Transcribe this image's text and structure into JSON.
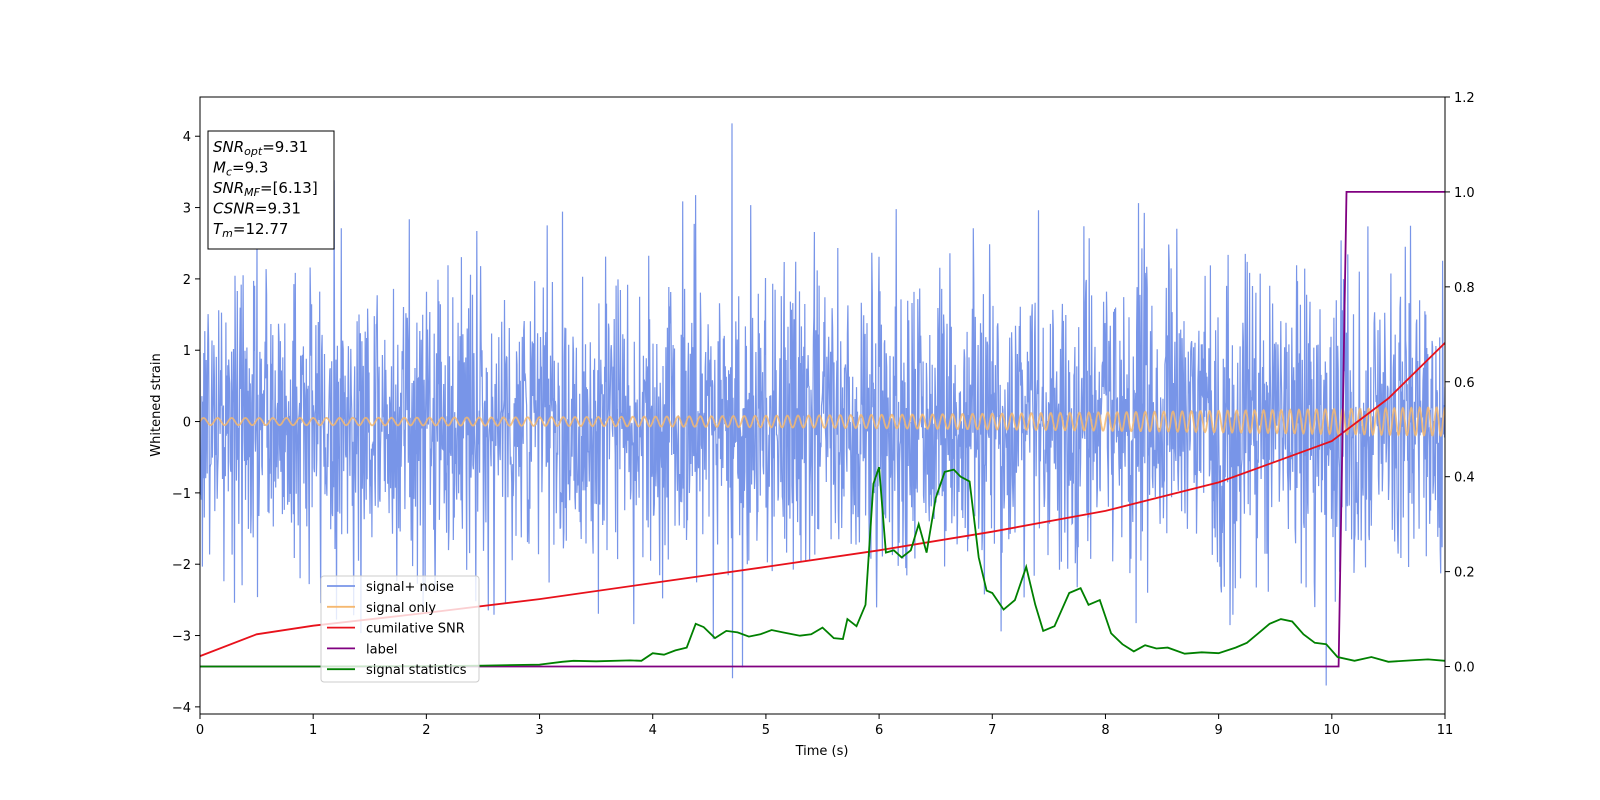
{
  "chart_data": {
    "type": "line",
    "title": "",
    "xlabel": "Time (s)",
    "ylabel": "Whitened strain",
    "xlim": [
      0,
      11
    ],
    "ylim": [
      -4.1,
      4.55
    ],
    "y2lim": [
      -0.1,
      1.2
    ],
    "grid": false,
    "xticks": [
      "0",
      "1",
      "2",
      "3",
      "4",
      "5",
      "6",
      "7",
      "8",
      "9",
      "10",
      "11"
    ],
    "yticks": [
      "−4",
      "−3",
      "−2",
      "−1",
      "0",
      "1",
      "2",
      "3",
      "4"
    ],
    "y2ticks": [
      "0.0",
      "0.2",
      "0.4",
      "0.6",
      "0.8",
      "1.0",
      "1.2"
    ],
    "legend": {
      "position": "lower-left",
      "entries": [
        "signal+ noise",
        "signal only",
        "cumilative SNR",
        "label",
        "signal statistics"
      ]
    },
    "annotation": {
      "position": "top-left",
      "lines": [
        {
          "sym": "SNR",
          "sub": "opt",
          "val": "=9.31"
        },
        {
          "sym": "M",
          "sub": "c",
          "val": "=9.3"
        },
        {
          "sym": "SNR",
          "sub": "MF",
          "val": "=[6.13]"
        },
        {
          "sym": "CSNR",
          "sub": "",
          "val": "=9.31"
        },
        {
          "sym": "T",
          "sub": "m",
          "val": "=12.77"
        }
      ]
    },
    "series": [
      {
        "name": "signal+ noise",
        "axis": "left",
        "color": "#7895e8",
        "kind": "noise",
        "std": 1.05,
        "amplitude_range": [
          -3.7,
          4.18
        ],
        "samples": 2600
      },
      {
        "name": "signal only",
        "axis": "left",
        "color": "#f5b870",
        "kind": "chirp",
        "amplitude_start": 0.05,
        "amplitude_end": 0.2
      },
      {
        "name": "cumilative SNR",
        "axis": "right",
        "color": "#e8111b",
        "x": [
          0,
          0.5,
          1,
          2,
          3,
          4,
          5,
          6,
          7,
          8,
          9,
          10,
          10.5,
          11
        ],
        "y": [
          0.022,
          0.068,
          0.086,
          0.113,
          0.142,
          0.176,
          0.21,
          0.245,
          0.284,
          0.328,
          0.388,
          0.475,
          0.565,
          0.682
        ]
      },
      {
        "name": "label",
        "axis": "right",
        "color": "#800080",
        "x": [
          0,
          10.06,
          10.13,
          11
        ],
        "y": [
          0,
          0,
          1,
          1
        ]
      },
      {
        "name": "signal statistics",
        "axis": "right",
        "color": "#008000",
        "x": [
          0,
          1,
          2,
          2.5,
          3,
          3.2,
          3.3,
          3.5,
          3.8,
          3.9,
          4.0,
          4.1,
          4.2,
          4.3,
          4.38,
          4.45,
          4.55,
          4.65,
          4.75,
          4.85,
          4.95,
          5.05,
          5.15,
          5.3,
          5.4,
          5.5,
          5.6,
          5.68,
          5.72,
          5.8,
          5.88,
          5.95,
          6.0,
          6.06,
          6.13,
          6.2,
          6.28,
          6.35,
          6.42,
          6.5,
          6.58,
          6.66,
          6.72,
          6.8,
          6.88,
          6.95,
          7.0,
          7.1,
          7.2,
          7.3,
          7.38,
          7.45,
          7.55,
          7.68,
          7.78,
          7.85,
          7.95,
          8.05,
          8.15,
          8.25,
          8.35,
          8.45,
          8.55,
          8.7,
          8.85,
          9.0,
          9.15,
          9.25,
          9.35,
          9.45,
          9.55,
          9.65,
          9.75,
          9.85,
          9.95,
          10.05,
          10.2,
          10.35,
          10.5,
          10.7,
          10.85,
          11.0
        ],
        "y": [
          0,
          0,
          0.001,
          0.002,
          0.004,
          0.01,
          0.012,
          0.011,
          0.013,
          0.012,
          0.028,
          0.025,
          0.034,
          0.04,
          0.09,
          0.083,
          0.06,
          0.075,
          0.072,
          0.063,
          0.068,
          0.077,
          0.072,
          0.065,
          0.068,
          0.082,
          0.06,
          0.058,
          0.1,
          0.085,
          0.13,
          0.385,
          0.42,
          0.24,
          0.245,
          0.23,
          0.245,
          0.3,
          0.24,
          0.355,
          0.41,
          0.415,
          0.4,
          0.39,
          0.23,
          0.16,
          0.155,
          0.12,
          0.14,
          0.21,
          0.13,
          0.075,
          0.085,
          0.155,
          0.165,
          0.13,
          0.14,
          0.07,
          0.047,
          0.032,
          0.045,
          0.038,
          0.04,
          0.027,
          0.03,
          0.028,
          0.04,
          0.05,
          0.07,
          0.09,
          0.1,
          0.095,
          0.068,
          0.05,
          0.047,
          0.02,
          0.012,
          0.02,
          0.01,
          0.013,
          0.015,
          0.012
        ]
      }
    ]
  }
}
